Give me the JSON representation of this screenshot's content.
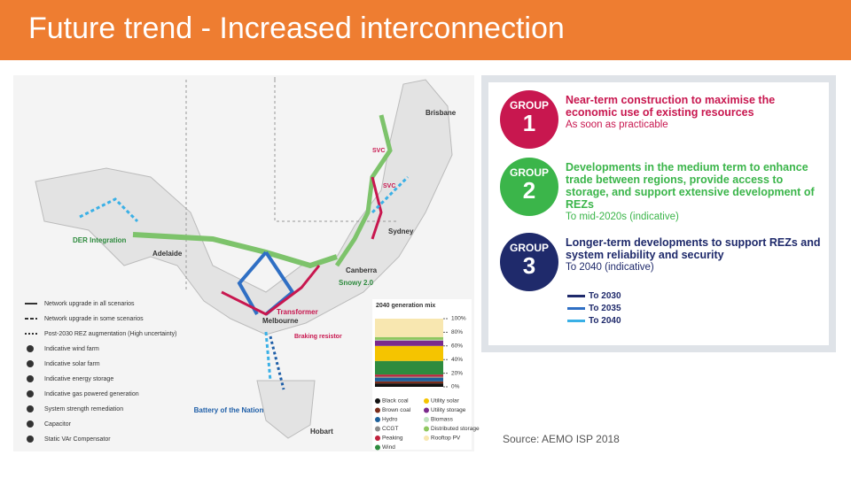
{
  "header": {
    "title": "Future trend - Increased interconnection"
  },
  "map": {
    "places": [
      "Brisbane",
      "Sydney",
      "Canberra",
      "Adelaide",
      "Melbourne",
      "Hobart"
    ],
    "annotations": [
      "SVC",
      "SVC",
      "DER Integration",
      "Snowy 2.0",
      "Transformer",
      "Braking resistor",
      "Battery of the Nation"
    ],
    "legend": [
      "Network upgrade in all scenarios",
      "Network upgrade in some scenarios",
      "Post-2030 REZ augmentation (High uncertainty)",
      "Indicative wind farm",
      "Indicative solar farm",
      "Indicative energy storage",
      "Indicative gas powered generation",
      "System strength remediation",
      "Capacitor",
      "Static VAr Compensator"
    ]
  },
  "generation_mix": {
    "type": "bar",
    "title": "2040 generation mix",
    "categories": [
      "Black coal",
      "Brown coal",
      "Hydro",
      "CCGT",
      "Peaking",
      "Wind",
      "Utility solar",
      "Utility storage",
      "Biomass",
      "Distributed storage",
      "Rooftop PV"
    ],
    "values": [
      5,
      3,
      5,
      2,
      3,
      20,
      22,
      8,
      1,
      4,
      27
    ],
    "colors": [
      "#111111",
      "#7a2d1b",
      "#1c5f9a",
      "#8c8c8c",
      "#c0223d",
      "#2e8b3e",
      "#f5c400",
      "#7b2a8c",
      "#bfe3c0",
      "#8fc760",
      "#f8e7b0"
    ],
    "ylim": [
      0,
      100
    ],
    "yticks": [
      {
        "value": 0,
        "label": "0%"
      },
      {
        "value": 20,
        "label": "20%"
      },
      {
        "value": 40,
        "label": "40%"
      },
      {
        "value": 60,
        "label": "60%"
      },
      {
        "value": 80,
        "label": "80%"
      },
      {
        "value": 100,
        "label": "100%"
      }
    ]
  },
  "groups": [
    {
      "badge": "GROUP",
      "number": "1",
      "heading": "Near-term construction to maximise the economic use of existing resources",
      "timing": "As soon as practicable",
      "color": "#c8174f"
    },
    {
      "badge": "GROUP",
      "number": "2",
      "heading": "Developments in the medium term to enhance trade between regions, provide access to storage, and support extensive development of REZs",
      "timing": "To mid-2020s (indicative)",
      "color": "#3bb54a"
    },
    {
      "badge": "GROUP",
      "number": "3",
      "heading": "Longer-term developments to support REZs and system reliability and security",
      "timing": "To 2040 (indicative)",
      "color": "#1f2a6b"
    }
  ],
  "timeline": [
    {
      "label": "To 2030",
      "color": "#1f2a6b"
    },
    {
      "label": "To 2035",
      "color": "#2f6fc4"
    },
    {
      "label": "To 2040",
      "color": "#3ab0e6"
    }
  ],
  "source": "Source: AEMO ISP 2018"
}
